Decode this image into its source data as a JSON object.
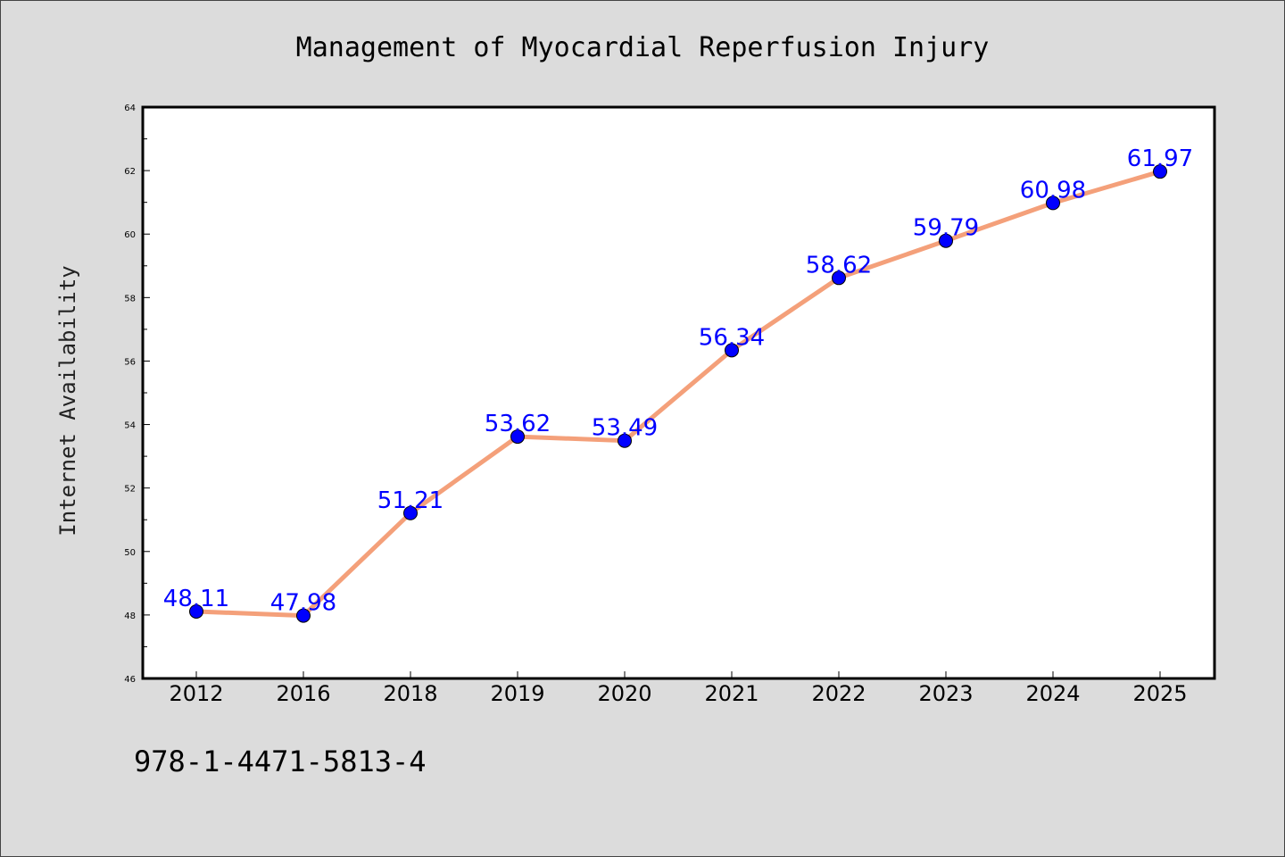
{
  "chart_data": {
    "type": "line",
    "title": "Management of Myocardial Reperfusion Injury",
    "xlabel": "",
    "ylabel": "Internet Availability",
    "categories": [
      "2012",
      "2016",
      "2018",
      "2019",
      "2020",
      "2021",
      "2022",
      "2023",
      "2024",
      "2025"
    ],
    "values": [
      48.11,
      47.98,
      51.21,
      53.62,
      53.49,
      56.34,
      58.62,
      59.79,
      60.98,
      61.97
    ],
    "ylim": [
      46,
      64
    ],
    "yticks": [
      46,
      48,
      50,
      52,
      54,
      56,
      58,
      60,
      62,
      64
    ],
    "grid": false,
    "legend": "none",
    "line_color": "#f4a07a",
    "marker_color": "#0000ff",
    "label_color": "#0000ff"
  },
  "footer": {
    "isbn": "978-1-4471-5813-4"
  }
}
